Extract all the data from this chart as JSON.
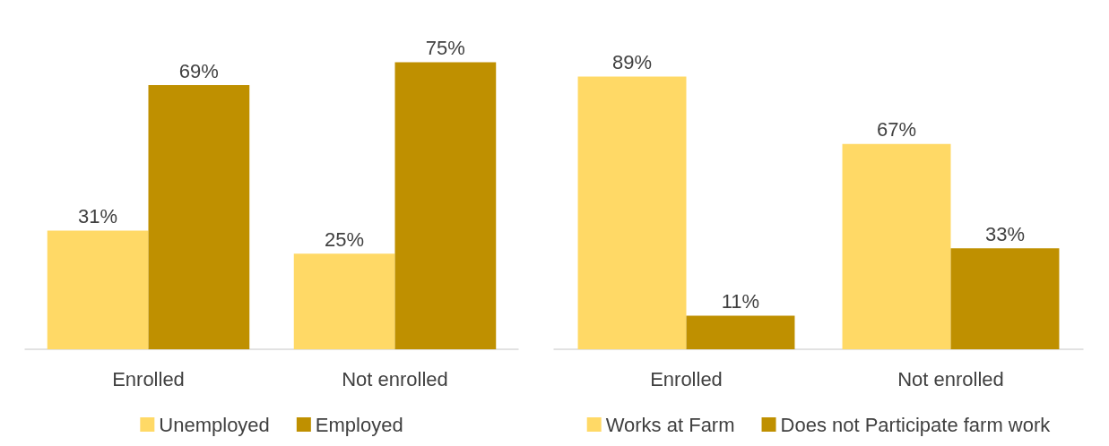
{
  "chart_data": [
    {
      "type": "bar",
      "categories": [
        "Enrolled",
        "Not enrolled"
      ],
      "series": [
        {
          "name": "Unemployed",
          "color": "#ffd966",
          "values": [
            31,
            25
          ],
          "value_labels": [
            "31%",
            "25%"
          ]
        },
        {
          "name": "Employed",
          "color": "#bf9000",
          "values": [
            69,
            75
          ],
          "value_labels": [
            "69%",
            "75%"
          ]
        }
      ],
      "legend": "bottom"
    },
    {
      "type": "bar",
      "categories": [
        "Enrolled",
        "Not enrolled"
      ],
      "series": [
        {
          "name": "Works at Farm",
          "color": "#ffd966",
          "values": [
            89,
            67
          ],
          "value_labels": [
            "89%",
            "67%"
          ]
        },
        {
          "name": "Does not Participate farm work",
          "color": "#bf9000",
          "values": [
            11,
            33
          ],
          "value_labels": [
            "11%",
            "33%"
          ]
        }
      ],
      "legend": "bottom"
    }
  ]
}
